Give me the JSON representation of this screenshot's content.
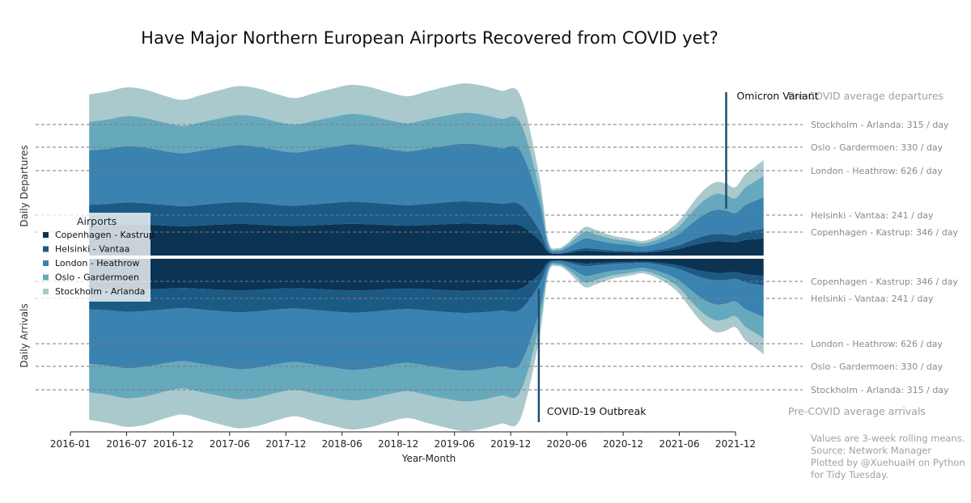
{
  "chart_data": {
    "type": "area",
    "subtype": "mirrored stacked streamgraph",
    "title": "Have Major Northern European Airports Recovered from COVID yet?",
    "xlabel": "Year-Month",
    "ylabel_top": "Daily Departures",
    "ylabel_bottom": "Daily Arrivals",
    "x_ticks": [
      "2016-01",
      "2016-07",
      "2016-12",
      "2017-06",
      "2017-12",
      "2018-06",
      "2018-12",
      "2019-06",
      "2019-12",
      "2020-06",
      "2020-12",
      "2021-06",
      "2021-12"
    ],
    "x": [
      "2016-03",
      "2016-05",
      "2016-07",
      "2016-09",
      "2016-11",
      "2017-01",
      "2017-03",
      "2017-05",
      "2017-07",
      "2017-09",
      "2017-11",
      "2018-01",
      "2018-03",
      "2018-05",
      "2018-07",
      "2018-09",
      "2018-11",
      "2019-01",
      "2019-03",
      "2019-05",
      "2019-07",
      "2019-09",
      "2019-11",
      "2020-01",
      "2020-03",
      "2020-04",
      "2020-05",
      "2020-06",
      "2020-07",
      "2020-08",
      "2020-09",
      "2020-10",
      "2020-11",
      "2020-12",
      "2021-01",
      "2021-02",
      "2021-03",
      "2021-04",
      "2021-05",
      "2021-06",
      "2021-07",
      "2021-08",
      "2021-09",
      "2021-10",
      "2021-11",
      "2021-12",
      "2022-01",
      "2022-02",
      "2022-03"
    ],
    "legend_title": "Airports",
    "legend_position": "left",
    "series": [
      {
        "name": "Copenhagen - Kastrup",
        "color": "#0b3354",
        "values": [
          340,
          345,
          355,
          350,
          340,
          332,
          340,
          350,
          358,
          352,
          340,
          335,
          342,
          352,
          360,
          355,
          345,
          338,
          345,
          355,
          362,
          358,
          348,
          342,
          180,
          40,
          18,
          28,
          45,
          55,
          50,
          45,
          40,
          38,
          36,
          32,
          38,
          48,
          60,
          78,
          105,
          130,
          150,
          160,
          158,
          150,
          175,
          185,
          195
        ]
      },
      {
        "name": "Helsinki - Vantaa",
        "color": "#1b5a85",
        "values": [
          236,
          240,
          246,
          242,
          234,
          228,
          235,
          243,
          248,
          244,
          236,
          230,
          237,
          245,
          250,
          246,
          238,
          233,
          240,
          248,
          252,
          248,
          240,
          236,
          120,
          20,
          8,
          12,
          22,
          30,
          26,
          22,
          18,
          16,
          15,
          13,
          16,
          22,
          30,
          40,
          55,
          70,
          80,
          85,
          82,
          78,
          92,
          100,
          108
        ]
      },
      {
        "name": "London - Heathrow",
        "color": "#3a82b0",
        "values": [
          615,
          625,
          640,
          632,
          612,
          600,
          615,
          630,
          645,
          638,
          618,
          605,
          620,
          635,
          650,
          642,
          622,
          610,
          625,
          640,
          655,
          648,
          628,
          615,
          320,
          50,
          25,
          45,
          80,
          110,
          100,
          88,
          78,
          72,
          65,
          58,
          65,
          80,
          100,
          130,
          175,
          220,
          255,
          275,
          268,
          255,
          300,
          330,
          360
        ]
      },
      {
        "name": "Oslo - Gardermoen",
        "color": "#67a9bc",
        "values": [
          325,
          332,
          340,
          336,
          322,
          310,
          322,
          334,
          342,
          338,
          326,
          315,
          328,
          338,
          345,
          340,
          330,
          320,
          332,
          342,
          348,
          344,
          334,
          322,
          165,
          35,
          18,
          30,
          55,
          75,
          68,
          58,
          50,
          45,
          40,
          36,
          40,
          50,
          65,
          85,
          115,
          145,
          168,
          180,
          175,
          168,
          200,
          220,
          240
        ]
      },
      {
        "name": "Stockholm - Arlanda",
        "color": "#a9c9cd",
        "values": [
          310,
          318,
          325,
          320,
          305,
          295,
          308,
          320,
          328,
          322,
          310,
          300,
          312,
          322,
          330,
          326,
          314,
          305,
          316,
          326,
          334,
          328,
          318,
          306,
          150,
          30,
          14,
          22,
          40,
          55,
          50,
          42,
          36,
          32,
          28,
          25,
          30,
          38,
          48,
          62,
          85,
          108,
          125,
          135,
          130,
          125,
          150,
          165,
          180
        ]
      }
    ],
    "reference_lines": {
      "header_top": "Pre-COVID average departures",
      "header_bottom": "Pre-COVID average arrivals",
      "top": [
        {
          "label": "Stockholm - Arlanda: 315 / day"
        },
        {
          "label": "Oslo - Gardermoen: 330 / day"
        },
        {
          "label": "London - Heathrow: 626 / day"
        },
        {
          "label": "Helsinki - Vantaa: 241 / day"
        },
        {
          "label": "Copenhagen - Kastrup: 346 / day"
        }
      ],
      "bottom": [
        {
          "label": "Copenhagen - Kastrup: 346 / day"
        },
        {
          "label": "Helsinki - Vantaa: 241 / day"
        },
        {
          "label": "London - Heathrow: 626 / day"
        },
        {
          "label": "Oslo - Gardermoen: 330 / day"
        },
        {
          "label": "Stockholm - Arlanda: 315 / day"
        }
      ]
    },
    "annotations": [
      {
        "label": "Omicron Variant",
        "date": "2021-11"
      },
      {
        "label": "COVID-19 Outbreak",
        "date": "2020-03"
      }
    ],
    "notes": [
      "Values are 3-week rolling means.",
      "Source: Network Manager",
      "Plotted by @XuehuaiH on Python",
      "for Tidy Tuesday."
    ]
  }
}
